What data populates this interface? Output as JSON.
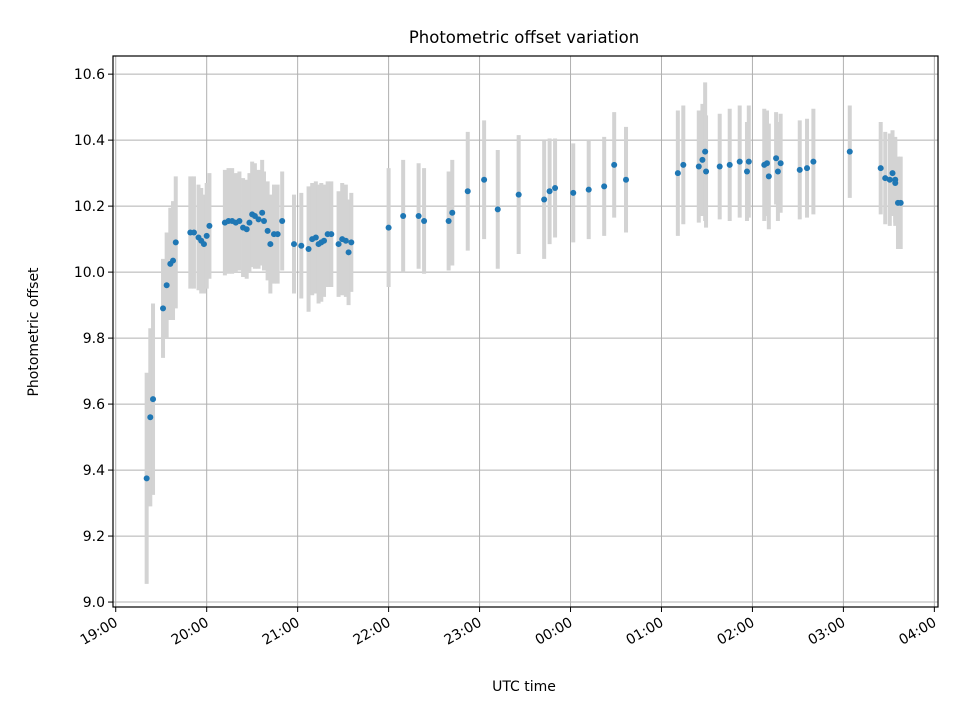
{
  "chart_data": {
    "type": "scatter",
    "title": "Photometric offset variation",
    "xlabel": "UTC time",
    "ylabel": "Photometric offset",
    "x_axis_unit": "hours after 19:00 UTC (times past midnight continue above 5)",
    "xlim": [
      -0.03,
      9.04
    ],
    "ylim": [
      8.985,
      10.655
    ],
    "x_tick_values": [
      0,
      1,
      2,
      3,
      4,
      5,
      6,
      7,
      8,
      9
    ],
    "x_tick_labels": [
      "19:00",
      "20:00",
      "21:00",
      "22:00",
      "23:00",
      "00:00",
      "01:00",
      "02:00",
      "03:00",
      "04:00"
    ],
    "y_ticks": [
      9.0,
      9.2,
      9.4,
      9.6,
      9.8,
      10.0,
      10.2,
      10.4,
      10.6
    ],
    "y_tick_labels": [
      "9.0",
      "9.2",
      "9.4",
      "9.6",
      "9.8",
      "10.0",
      "10.2",
      "10.4",
      "10.6"
    ],
    "grid": true,
    "marker_color": "#1f77b4",
    "errorbar_color": "#d3d3d3",
    "series": [
      {
        "points": [
          [
            0.34,
            9.375,
            0.32
          ],
          [
            0.38,
            9.56,
            0.27
          ],
          [
            0.41,
            9.615,
            0.29
          ],
          [
            0.52,
            9.89,
            0.15
          ],
          [
            0.56,
            9.96,
            0.16
          ],
          [
            0.6,
            10.025,
            0.17
          ],
          [
            0.63,
            10.035,
            0.18
          ],
          [
            0.66,
            10.09,
            0.2
          ],
          [
            0.82,
            10.12,
            0.17
          ],
          [
            0.86,
            10.12,
            0.17
          ],
          [
            0.91,
            10.105,
            0.16
          ],
          [
            0.94,
            10.095,
            0.16
          ],
          [
            0.97,
            10.085,
            0.15
          ],
          [
            1.0,
            10.11,
            0.16
          ],
          [
            1.03,
            10.14,
            0.16
          ],
          [
            1.2,
            10.15,
            0.16
          ],
          [
            1.24,
            10.155,
            0.16
          ],
          [
            1.28,
            10.155,
            0.16
          ],
          [
            1.32,
            10.15,
            0.15
          ],
          [
            1.36,
            10.155,
            0.15
          ],
          [
            1.4,
            10.135,
            0.15
          ],
          [
            1.44,
            10.13,
            0.15
          ],
          [
            1.47,
            10.15,
            0.15
          ],
          [
            1.5,
            10.175,
            0.16
          ],
          [
            1.53,
            10.17,
            0.16
          ],
          [
            1.57,
            10.16,
            0.15
          ],
          [
            1.61,
            10.18,
            0.16
          ],
          [
            1.63,
            10.155,
            0.15
          ],
          [
            1.67,
            10.125,
            0.15
          ],
          [
            1.7,
            10.085,
            0.15
          ],
          [
            1.74,
            10.115,
            0.15
          ],
          [
            1.78,
            10.115,
            0.15
          ],
          [
            1.83,
            10.155,
            0.15
          ],
          [
            1.96,
            10.085,
            0.15
          ],
          [
            2.04,
            10.08,
            0.16
          ],
          [
            2.12,
            10.07,
            0.19
          ],
          [
            2.16,
            10.1,
            0.17
          ],
          [
            2.2,
            10.105,
            0.17
          ],
          [
            2.23,
            10.085,
            0.18
          ],
          [
            2.26,
            10.09,
            0.18
          ],
          [
            2.29,
            10.095,
            0.17
          ],
          [
            2.33,
            10.115,
            0.16
          ],
          [
            2.37,
            10.115,
            0.16
          ],
          [
            2.45,
            10.085,
            0.16
          ],
          [
            2.49,
            10.1,
            0.17
          ],
          [
            2.53,
            10.095,
            0.17
          ],
          [
            2.56,
            10.06,
            0.16
          ],
          [
            2.59,
            10.09,
            0.15
          ],
          [
            3.0,
            10.135,
            0.18
          ],
          [
            3.16,
            10.17,
            0.17
          ],
          [
            3.33,
            10.17,
            0.16
          ],
          [
            3.39,
            10.155,
            0.16
          ],
          [
            3.66,
            10.155,
            0.15
          ],
          [
            3.7,
            10.18,
            0.16
          ],
          [
            3.87,
            10.245,
            0.18
          ],
          [
            4.05,
            10.28,
            0.18
          ],
          [
            4.2,
            10.19,
            0.18
          ],
          [
            4.43,
            10.235,
            0.18
          ],
          [
            4.71,
            10.22,
            0.18
          ],
          [
            4.77,
            10.245,
            0.16
          ],
          [
            4.83,
            10.255,
            0.15
          ],
          [
            5.03,
            10.24,
            0.15
          ],
          [
            5.2,
            10.25,
            0.15
          ],
          [
            5.37,
            10.26,
            0.15
          ],
          [
            5.48,
            10.325,
            0.16
          ],
          [
            5.61,
            10.28,
            0.16
          ],
          [
            6.18,
            10.3,
            0.19
          ],
          [
            6.24,
            10.325,
            0.18
          ],
          [
            6.41,
            10.32,
            0.17
          ],
          [
            6.45,
            10.34,
            0.17
          ],
          [
            6.49,
            10.305,
            0.17
          ],
          [
            6.48,
            10.365,
            0.21
          ],
          [
            6.64,
            10.32,
            0.16
          ],
          [
            6.75,
            10.325,
            0.17
          ],
          [
            6.86,
            10.335,
            0.17
          ],
          [
            6.94,
            10.305,
            0.15
          ],
          [
            6.96,
            10.335,
            0.17
          ],
          [
            7.13,
            10.325,
            0.17
          ],
          [
            7.16,
            10.33,
            0.16
          ],
          [
            7.18,
            10.29,
            0.16
          ],
          [
            7.26,
            10.345,
            0.14
          ],
          [
            7.28,
            10.305,
            0.15
          ],
          [
            7.31,
            10.33,
            0.15
          ],
          [
            7.52,
            10.31,
            0.15
          ],
          [
            7.6,
            10.315,
            0.15
          ],
          [
            7.67,
            10.335,
            0.16
          ],
          [
            8.07,
            10.365,
            0.14
          ],
          [
            8.41,
            10.315,
            0.14
          ],
          [
            8.46,
            10.285,
            0.14
          ],
          [
            8.51,
            10.28,
            0.14
          ],
          [
            8.54,
            10.3,
            0.13
          ],
          [
            8.57,
            10.28,
            0.13
          ],
          [
            8.57,
            10.27,
            0.13
          ],
          [
            8.6,
            10.21,
            0.14
          ],
          [
            8.63,
            10.21,
            0.14
          ]
        ]
      }
    ]
  }
}
